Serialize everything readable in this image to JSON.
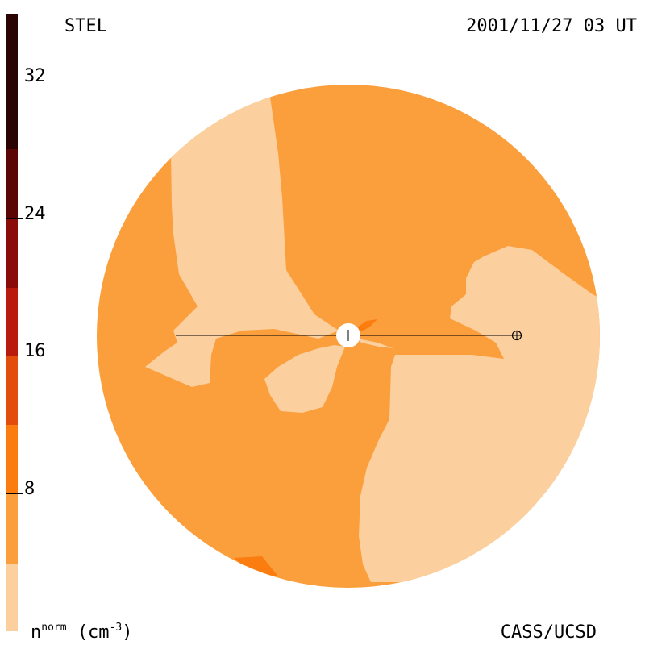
{
  "header": {
    "instrument": "STEL",
    "timestamp": "2001/11/27 03 UT"
  },
  "footer": {
    "unit_base": "n",
    "unit_super": "norm",
    "unit_paren": "(cm",
    "unit_exp": "-3",
    "unit_close": ")",
    "credit": "CASS/UCSD"
  },
  "colorbar": {
    "ticks": [
      "32",
      "24",
      "16",
      "8"
    ],
    "colors": [
      "#fccf9e",
      "#fb9e3c",
      "#fb7c0f",
      "#e24d0e",
      "#b81a0d",
      "#8b0a0a",
      "#5c0505",
      "#2a0403"
    ]
  },
  "map": {
    "background_color": "#fb9e3c",
    "low_density_color": "#fccf9e",
    "high_density_color": "#fb7c0f",
    "earth_marker": "⊕"
  }
}
